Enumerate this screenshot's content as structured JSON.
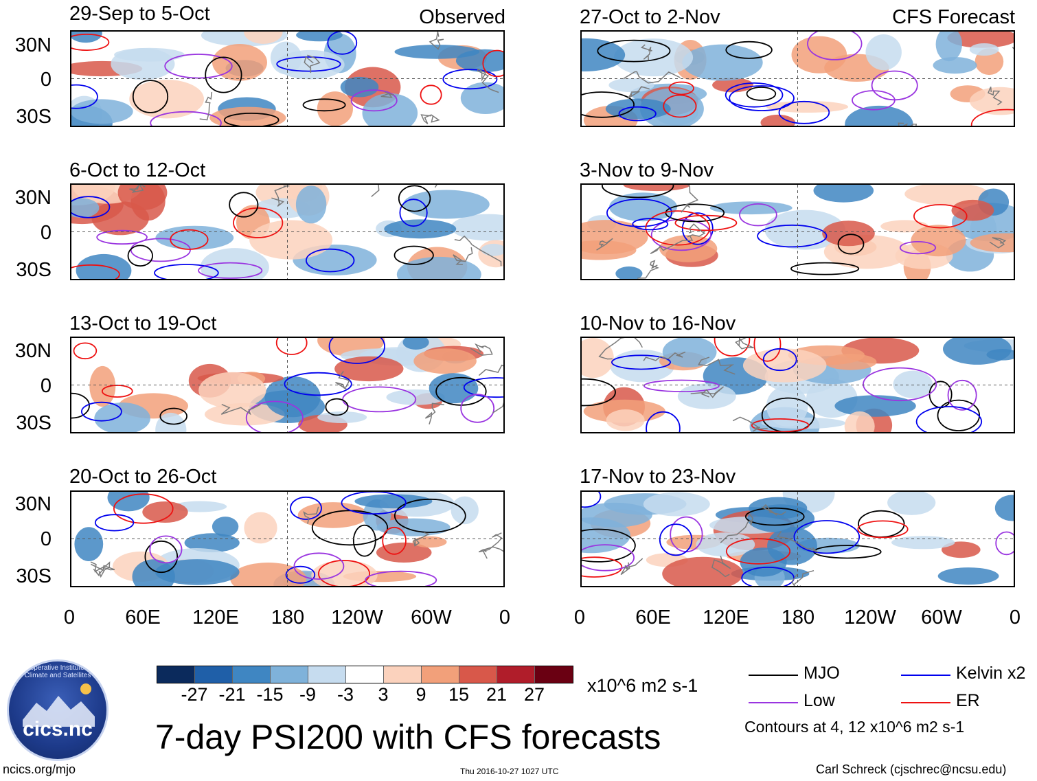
{
  "observed_label": "Observed",
  "forecast_label": "CFS Forecast",
  "panels_left": [
    {
      "title": "29-Sep to 5-Oct"
    },
    {
      "title": "6-Oct to 12-Oct"
    },
    {
      "title": "13-Oct to 19-Oct"
    },
    {
      "title": "20-Oct to 26-Oct"
    }
  ],
  "panels_right": [
    {
      "title": "27-Oct to 2-Nov"
    },
    {
      "title": "3-Nov to 9-Nov"
    },
    {
      "title": "10-Nov to 16-Nov"
    },
    {
      "title": "17-Nov to 23-Nov"
    }
  ],
  "chart_data": {
    "type": "heatmap",
    "title": "7-day PSI200 with CFS forecasts",
    "y_tick_labels": [
      "30N",
      "0",
      "30S"
    ],
    "x_tick_labels": [
      "0",
      "60E",
      "120E",
      "180",
      "120W",
      "60W",
      "0"
    ],
    "colorbar": {
      "units": "x10^6 m2 s-1",
      "tick_labels": [
        "-27",
        "-21",
        "-15",
        "-9",
        "-3",
        "3",
        "9",
        "15",
        "21",
        "27"
      ],
      "colors": [
        "#0b2a5c",
        "#1f5fa8",
        "#3f86c2",
        "#7fb2da",
        "#c6dcef",
        "#ffffff",
        "#fbd2bd",
        "#f2a07a",
        "#d8584a",
        "#b01d2a",
        "#6a0012"
      ]
    },
    "legend": [
      {
        "label": "MJO",
        "color": "#000000"
      },
      {
        "label": "Kelvin x2",
        "color": "#0000ee"
      },
      {
        "label": "Low",
        "color": "#9a35e0"
      },
      {
        "label": "ER",
        "color": "#ee1111"
      }
    ],
    "contours_note": "Contours at 4, 12 x10^6 m2 s-1"
  },
  "footer": {
    "left": "ncics.org/mjo",
    "center": "Thu 2016-10-27 1027 UTC",
    "right": "Carl Schreck (cjschrec@ncsu.edu)"
  },
  "logo": {
    "text": "cics.nc",
    "arc": "Cooperative Institute for Climate and Satellites"
  }
}
